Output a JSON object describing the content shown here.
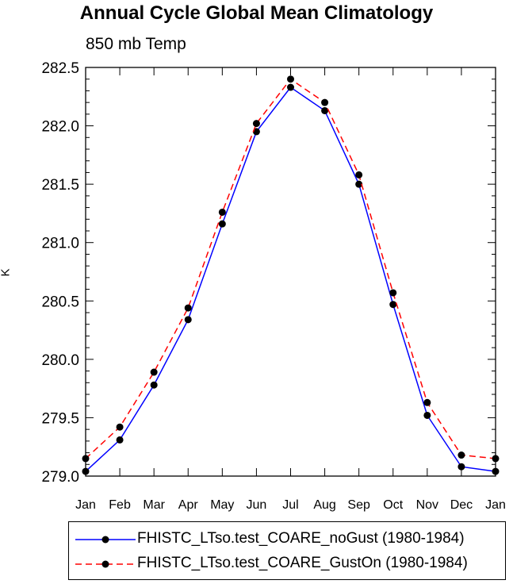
{
  "chart_data": {
    "type": "line",
    "title": "Annual Cycle Global Mean Climatology",
    "subtitle": "850 mb Temp",
    "xlabel": "",
    "ylabel": "K",
    "categories": [
      "Jan",
      "Feb",
      "Mar",
      "Apr",
      "May",
      "Jun",
      "Jul",
      "Aug",
      "Sep",
      "Oct",
      "Nov",
      "Dec",
      "Jan"
    ],
    "ylim": [
      279.0,
      282.5
    ],
    "yticks": [
      "279.0",
      "279.5",
      "280.0",
      "280.5",
      "281.0",
      "281.5",
      "282.0",
      "282.5"
    ],
    "series": [
      {
        "name": "FHISTC_LTso.test_COARE_noGust (1980-1984)",
        "color": "#0000ff",
        "dash": "solid",
        "values": [
          279.04,
          279.31,
          279.78,
          280.34,
          281.16,
          281.95,
          282.33,
          282.13,
          281.5,
          280.47,
          279.52,
          279.08,
          279.04
        ]
      },
      {
        "name": "FHISTC_LTso.test_COARE_GustOn (1980-1984)",
        "color": "#ff0000",
        "dash": "dashed",
        "values": [
          279.15,
          279.42,
          279.89,
          280.44,
          281.26,
          282.02,
          282.4,
          282.2,
          281.58,
          280.57,
          279.63,
          279.18,
          279.15
        ]
      }
    ]
  }
}
